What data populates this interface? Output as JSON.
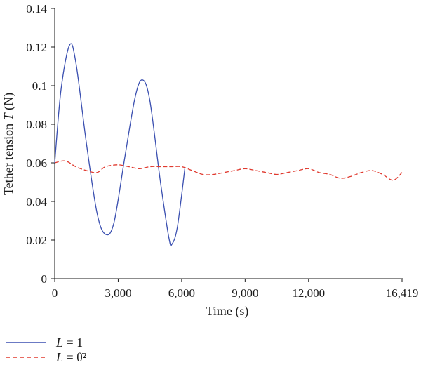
{
  "chart_data": {
    "type": "line",
    "xlabel": "Time (s)",
    "ylabel_prefix": "Tether tension ",
    "ylabel_var": "T",
    "ylabel_unit": " (N)",
    "xlim": [
      0,
      16419
    ],
    "ylim": [
      0,
      0.14
    ],
    "x_ticks": [
      0,
      3000,
      6000,
      9000,
      12000,
      16419
    ],
    "x_tick_labels": [
      "0",
      "3,000",
      "6,000",
      "9,000",
      "12,000",
      "16,419"
    ],
    "y_ticks": [
      0,
      0.02,
      0.04,
      0.06,
      0.08,
      0.1,
      0.12,
      0.14
    ],
    "y_tick_labels": [
      "0",
      "0.02",
      "0.04",
      "0.06",
      "0.08",
      "0.1",
      "0.12",
      "0.14"
    ],
    "grid": false,
    "legend_position": "bottom-left",
    "series": [
      {
        "name": "L = 1",
        "legend_var": "L",
        "legend_rest": " = 1",
        "color": "#3a4fb0",
        "style": "solid",
        "points": [
          [
            0,
            0.06
          ],
          [
            300,
            0.098
          ],
          [
            700,
            0.121
          ],
          [
            1000,
            0.112
          ],
          [
            1500,
            0.07
          ],
          [
            2000,
            0.034
          ],
          [
            2400,
            0.023
          ],
          [
            2800,
            0.029
          ],
          [
            3300,
            0.062
          ],
          [
            3800,
            0.094
          ],
          [
            4150,
            0.103
          ],
          [
            4500,
            0.092
          ],
          [
            5000,
            0.05
          ],
          [
            5400,
            0.021
          ],
          [
            5550,
            0.018
          ],
          [
            5800,
            0.027
          ],
          [
            6150,
            0.057
          ]
        ]
      },
      {
        "name": "L = θ̇²",
        "legend_var": "L",
        "legend_rest": " = θ̇²",
        "color": "#e03a2f",
        "style": "dashed",
        "points": [
          [
            0,
            0.06
          ],
          [
            500,
            0.061
          ],
          [
            1000,
            0.058
          ],
          [
            1500,
            0.056
          ],
          [
            2000,
            0.055
          ],
          [
            2400,
            0.058
          ],
          [
            3000,
            0.059
          ],
          [
            3500,
            0.058
          ],
          [
            4000,
            0.057
          ],
          [
            4500,
            0.058
          ],
          [
            5000,
            0.058
          ],
          [
            5500,
            0.058
          ],
          [
            6000,
            0.058
          ],
          [
            6500,
            0.056
          ],
          [
            7000,
            0.054
          ],
          [
            7500,
            0.054
          ],
          [
            8000,
            0.055
          ],
          [
            8500,
            0.056
          ],
          [
            9000,
            0.057
          ],
          [
            9500,
            0.056
          ],
          [
            10000,
            0.055
          ],
          [
            10500,
            0.054
          ],
          [
            11000,
            0.055
          ],
          [
            11500,
            0.056
          ],
          [
            12000,
            0.057
          ],
          [
            12500,
            0.055
          ],
          [
            13000,
            0.054
          ],
          [
            13500,
            0.052
          ],
          [
            14000,
            0.053
          ],
          [
            14500,
            0.055
          ],
          [
            15000,
            0.056
          ],
          [
            15500,
            0.054
          ],
          [
            16000,
            0.051
          ],
          [
            16419,
            0.055
          ]
        ]
      }
    ]
  }
}
